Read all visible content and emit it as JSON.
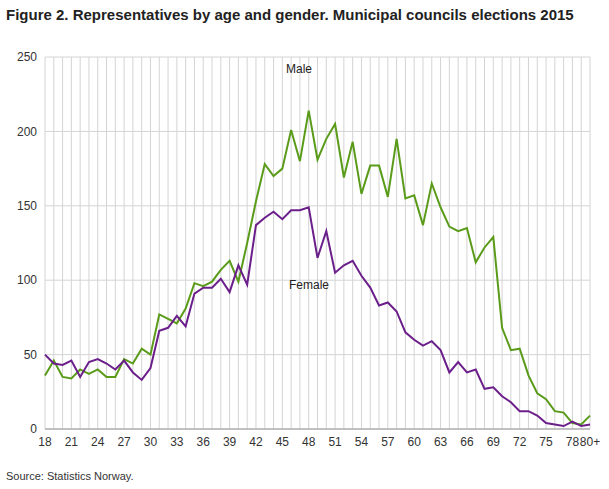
{
  "chart_data": {
    "type": "line",
    "title": "Figure 2. Representatives by age and gender. Municipal councils elections 2015",
    "source": "Source: Statistics Norway.",
    "categories": [
      "18",
      null,
      null,
      "21",
      null,
      null,
      "24",
      null,
      null,
      "27",
      null,
      null,
      "30",
      null,
      null,
      "33",
      null,
      null,
      "36",
      null,
      null,
      "39",
      null,
      null,
      "42",
      null,
      null,
      "45",
      null,
      null,
      "48",
      null,
      null,
      "51",
      null,
      null,
      "54",
      null,
      null,
      "57",
      null,
      null,
      "60",
      null,
      null,
      "63",
      null,
      null,
      "66",
      null,
      null,
      "69",
      null,
      null,
      "72",
      null,
      null,
      "75",
      null,
      null,
      "78",
      null,
      "80+"
    ],
    "series": [
      {
        "name": "Male",
        "color": "#5a9b1a",
        "values": [
          36,
          46,
          35,
          34,
          40,
          37,
          40,
          35,
          35,
          47,
          44,
          54,
          50,
          77,
          74,
          71,
          81,
          98,
          96,
          99,
          107,
          113,
          99,
          125,
          153,
          178,
          170,
          175,
          201,
          180,
          214,
          181,
          195,
          205,
          169,
          193,
          158,
          177,
          177,
          156,
          195,
          155,
          157,
          137,
          165,
          149,
          136,
          133,
          135,
          112,
          122,
          129,
          68,
          53,
          54,
          36,
          24,
          20,
          12,
          11,
          4,
          3,
          9
        ]
      },
      {
        "name": "Female",
        "color": "#6b1f8a",
        "values": [
          50,
          44,
          43,
          46,
          35,
          45,
          47,
          44,
          40,
          46,
          38,
          33,
          41,
          66,
          68,
          76,
          69,
          91,
          95,
          95,
          101,
          92,
          110,
          97,
          137,
          142,
          146,
          141,
          147,
          147,
          149,
          115,
          133,
          105,
          110,
          113,
          103,
          95,
          83,
          85,
          79,
          65,
          60,
          56,
          59,
          53,
          38,
          45,
          38,
          40,
          27,
          28,
          22,
          18,
          12,
          12,
          9,
          4,
          3,
          2,
          5,
          2,
          3
        ]
      }
    ],
    "ylim": [
      0,
      250
    ],
    "yticks": [
      0,
      50,
      100,
      150,
      200,
      250
    ],
    "grid": true
  }
}
